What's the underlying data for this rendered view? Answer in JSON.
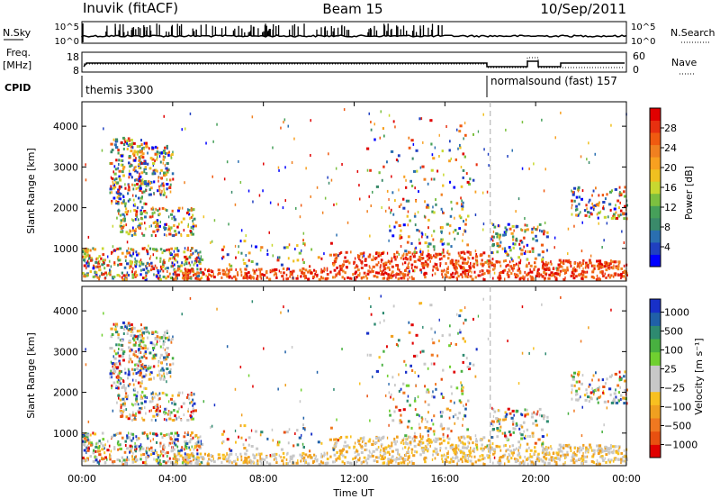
{
  "header": {
    "station": "Inuvik (fitACF)",
    "beam": "Beam 15",
    "date": "10/Sep/2011"
  },
  "labels": {
    "nsky": "N.Sky",
    "nsearch": "N.Search",
    "freq1": "Freq.",
    "freq2": "[MHz]",
    "nave": "Nave",
    "cpid": "CPID",
    "cpid_left": "themis 3300",
    "cpid_right": "normalsound (fast) 157",
    "nsky_ticks": [
      "10^5",
      "10^0"
    ],
    "nsearch_ticks": [
      "10^5",
      "10^0"
    ],
    "freq_ticks": [
      "18",
      "8"
    ],
    "nave_ticks": [
      "60",
      "0"
    ]
  },
  "chart_data": [
    {
      "type": "heatmap",
      "panel": "power",
      "ylabel": "Slant Range [km]",
      "xlabel": "",
      "yticks": [
        1000,
        2000,
        3000,
        4000
      ],
      "ylim": [
        200,
        4600
      ],
      "xlim_hours": [
        0,
        24
      ],
      "colorbar": {
        "label": "Power [dB]",
        "ticks": [
          4,
          8,
          12,
          16,
          20,
          24,
          28
        ],
        "range": [
          0,
          32
        ],
        "colors": [
          "#0000ff",
          "#2040c0",
          "#2a6fb0",
          "#3a8a6a",
          "#46a05a",
          "#7cc040",
          "#c8d830",
          "#f0c020",
          "#f8a020",
          "#f08020",
          "#f05a10",
          "#e83010",
          "#e00000"
        ]
      }
    },
    {
      "type": "heatmap",
      "panel": "velocity",
      "ylabel": "Slant Range [km]",
      "xlabel": "Time UT",
      "xticks": [
        "00:00",
        "04:00",
        "08:00",
        "12:00",
        "16:00",
        "20:00",
        "00:00"
      ],
      "yticks": [
        1000,
        2000,
        3000,
        4000
      ],
      "ylim": [
        200,
        4600
      ],
      "colorbar": {
        "label": "Velocity [m s⁻¹]",
        "ticks": [
          "1000",
          "500",
          "100",
          "25",
          "−25",
          "−100",
          "−500",
          "−1000"
        ],
        "colors": [
          "#1830c8",
          "#2060a8",
          "#2e8a70",
          "#48b040",
          "#70d030",
          "#c8c8c8",
          "#c8c8c8",
          "#f8c020",
          "#f0a020",
          "#f07820",
          "#e85010",
          "#e00000"
        ]
      }
    }
  ],
  "mode_change_hour": 18
}
